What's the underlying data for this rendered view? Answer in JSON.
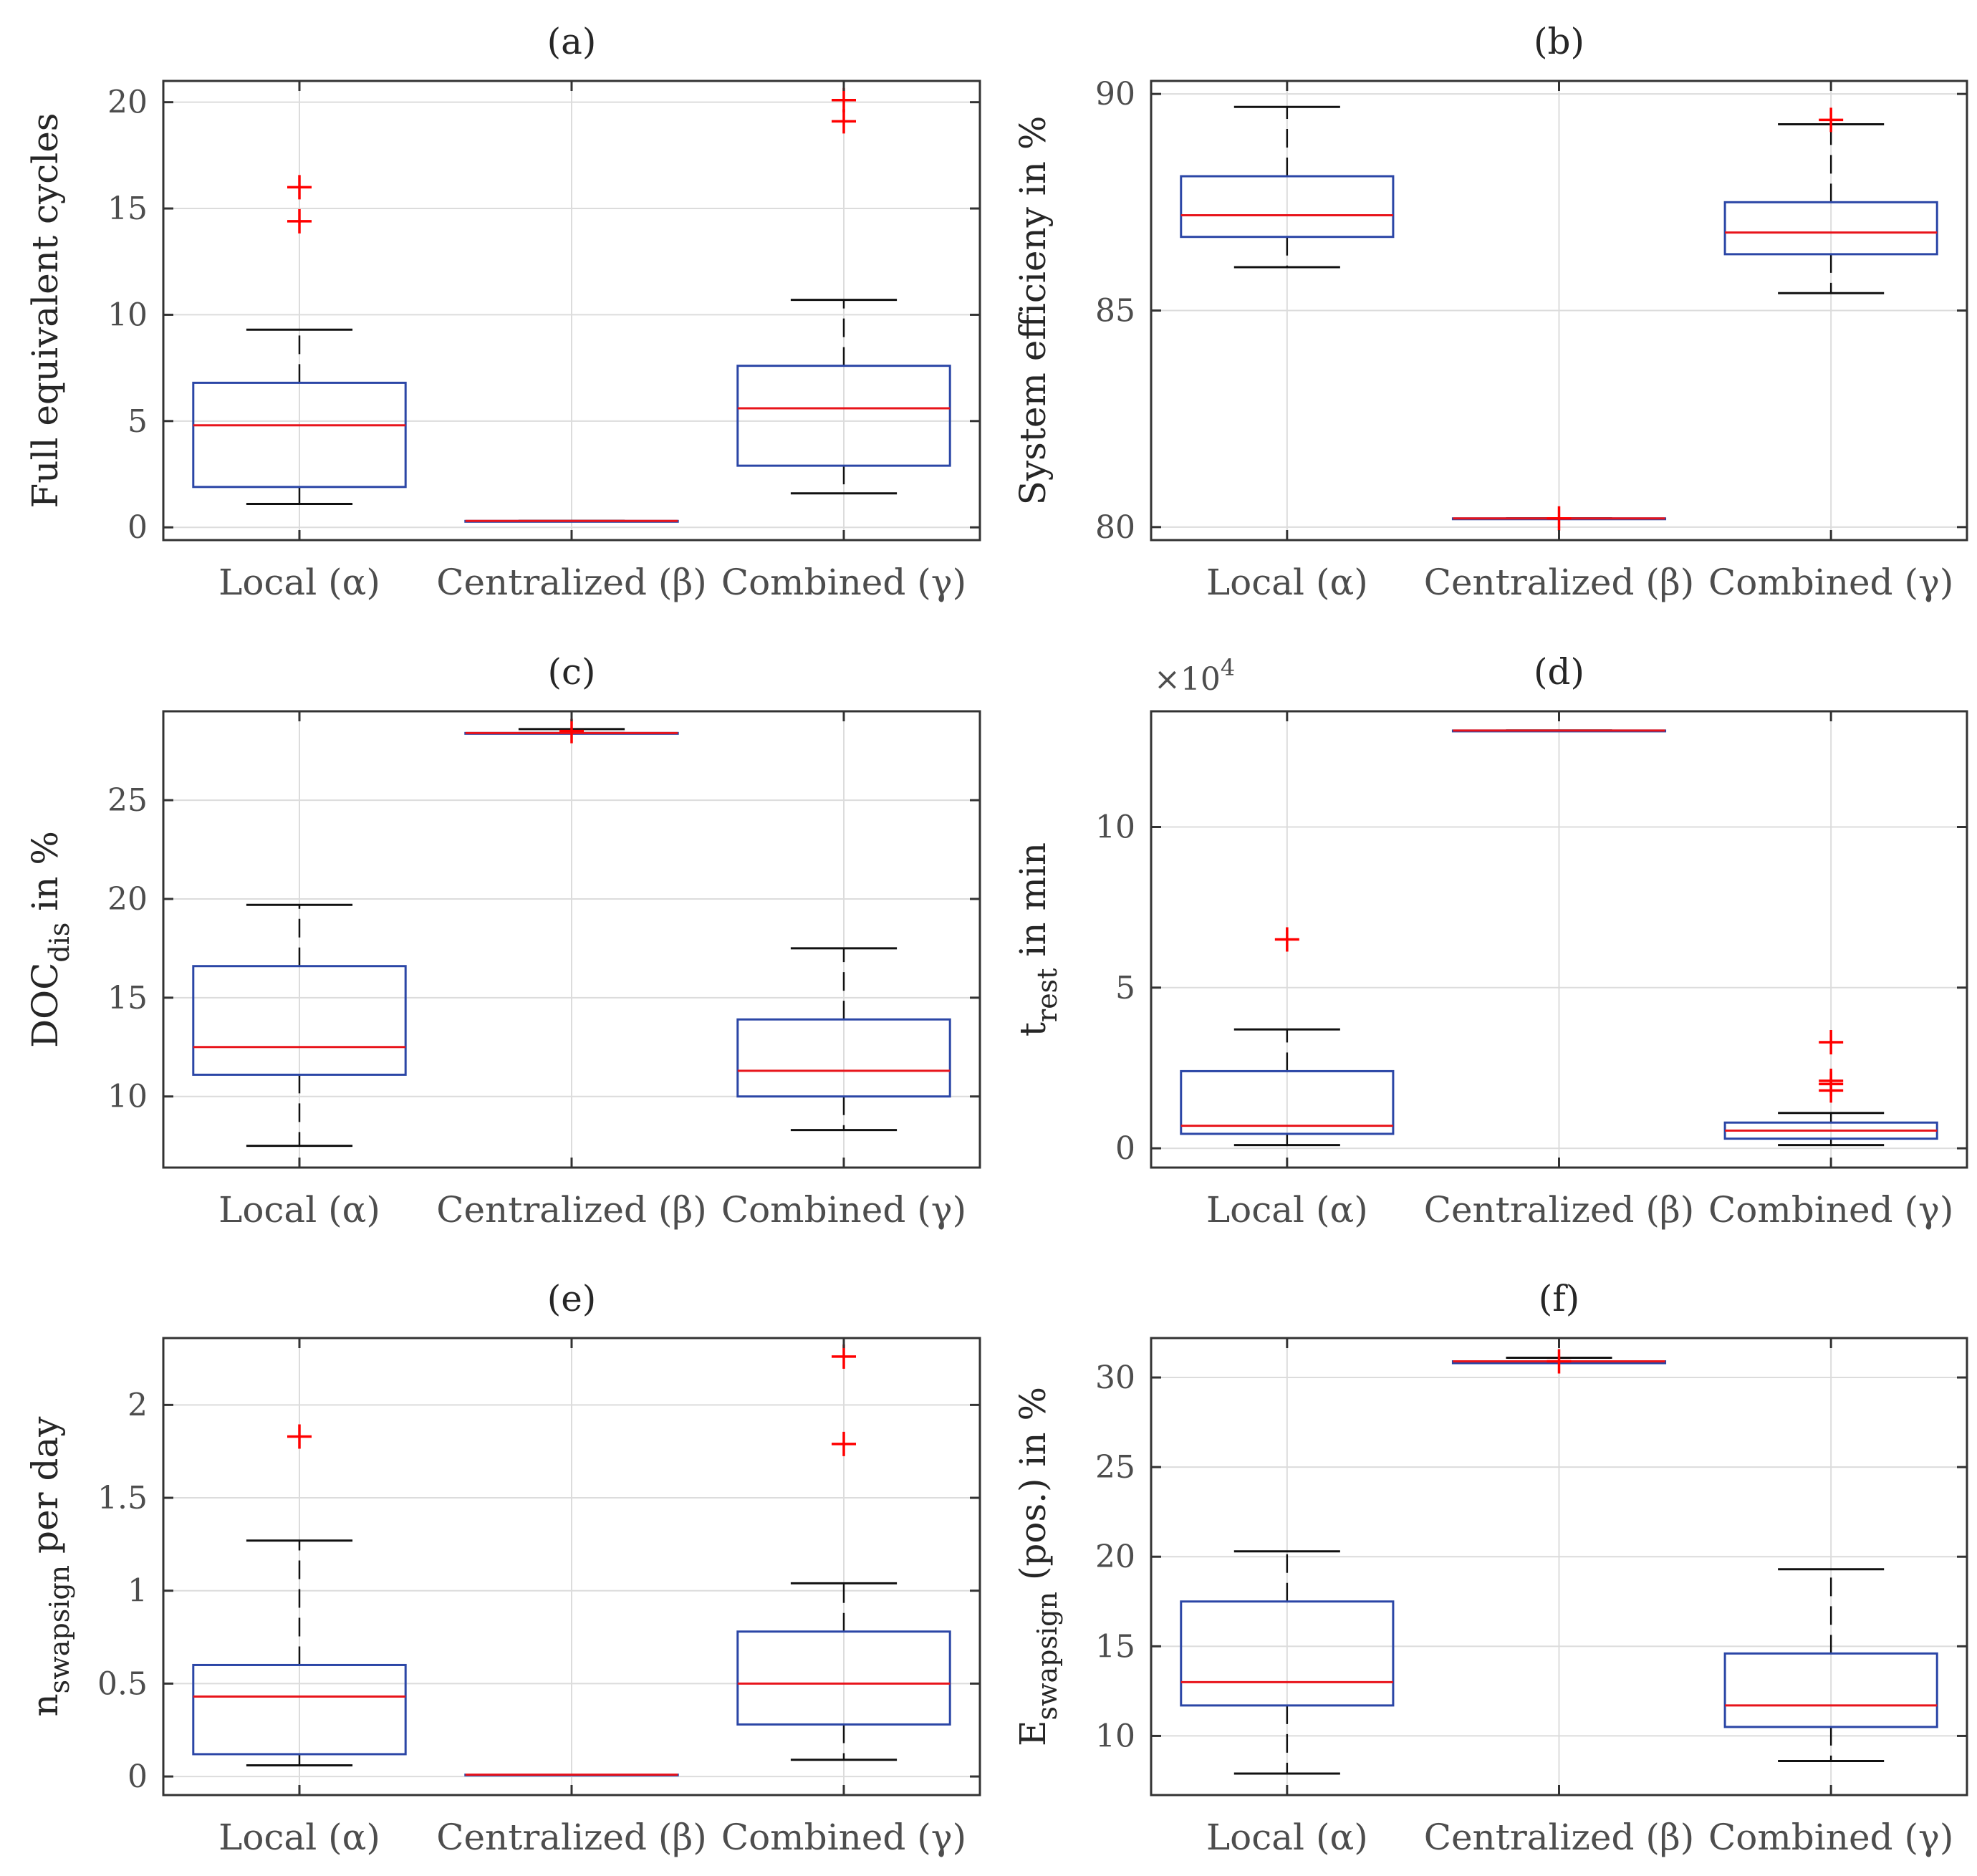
{
  "colors": {
    "box": "#2b46a6",
    "median": "#e8141b",
    "whisker": "#111111",
    "outlier": "#ff0000",
    "axes": "#333333",
    "grid": "#dcdcdc",
    "text": "#4d4d4d"
  },
  "chart_data": [
    {
      "type": "box",
      "title": "(a)",
      "ylabel": "Full equivalent cycles",
      "ylim": [
        -0.6,
        21
      ],
      "yticks": [
        0,
        5,
        10,
        15,
        20
      ],
      "ytick_labels": [
        "0",
        "5",
        "10",
        "15",
        "20"
      ],
      "grid": true,
      "categories": [
        "Local (α)",
        "Centralized (β)",
        "Combined (γ)"
      ],
      "boxes": [
        {
          "whisker_low": 1.1,
          "q1": 1.9,
          "median": 4.8,
          "q3": 6.8,
          "whisker_high": 9.3,
          "outliers": [
            14.4,
            16.0
          ]
        },
        {
          "whisker_low": 0.3,
          "q1": 0.3,
          "median": 0.3,
          "q3": 0.3,
          "whisker_high": 0.3,
          "outliers": []
        },
        {
          "whisker_low": 1.6,
          "q1": 2.9,
          "median": 5.6,
          "q3": 7.6,
          "whisker_high": 10.7,
          "outliers": [
            19.1,
            20.1
          ]
        }
      ]
    },
    {
      "type": "box",
      "title": "(b)",
      "ylabel": "System efficieny in %",
      "ylim": [
        79.7,
        90.3
      ],
      "yticks": [
        80,
        85,
        90
      ],
      "ytick_labels": [
        "80",
        "85",
        "90"
      ],
      "grid": true,
      "categories": [
        "Local (α)",
        "Centralized (β)",
        "Combined (γ)"
      ],
      "boxes": [
        {
          "whisker_low": 86.0,
          "q1": 86.7,
          "median": 87.2,
          "q3": 88.1,
          "whisker_high": 89.7,
          "outliers": []
        },
        {
          "whisker_low": 80.2,
          "q1": 80.2,
          "median": 80.2,
          "q3": 80.2,
          "whisker_high": 80.2,
          "outliers": [
            80.2
          ]
        },
        {
          "whisker_low": 85.4,
          "q1": 86.3,
          "median": 86.8,
          "q3": 87.5,
          "whisker_high": 89.3,
          "outliers": [
            89.4
          ]
        }
      ]
    },
    {
      "type": "box",
      "title": "(c)",
      "ylabel": "DOC",
      "ylabel_sub": "dis",
      "ylabel_suffix": "in %",
      "ylim": [
        6.4,
        29.5
      ],
      "yticks": [
        10,
        15,
        20,
        25
      ],
      "ytick_labels": [
        "10",
        "15",
        "20",
        "25"
      ],
      "grid": true,
      "categories": [
        "Local (α)",
        "Centralized (β)",
        "Combined (γ)"
      ],
      "boxes": [
        {
          "whisker_low": 7.5,
          "q1": 11.1,
          "median": 12.5,
          "q3": 16.6,
          "whisker_high": 19.7,
          "outliers": []
        },
        {
          "whisker_low": 28.4,
          "q1": 28.4,
          "median": 28.4,
          "q3": 28.4,
          "whisker_high": 28.6,
          "outliers": [
            28.5
          ]
        },
        {
          "whisker_low": 8.3,
          "q1": 10.0,
          "median": 11.3,
          "q3": 13.9,
          "whisker_high": 17.5,
          "outliers": []
        }
      ]
    },
    {
      "type": "box",
      "title": "(d)",
      "ylabel": "t",
      "ylabel_sub": "rest",
      "ylabel_suffix": "in min",
      "multiplier": "×10",
      "multiplier_exp": "4",
      "ylim": [
        -0.6,
        13.6
      ],
      "yticks": [
        0,
        5,
        10
      ],
      "ytick_labels": [
        "0",
        "5",
        "10"
      ],
      "grid": true,
      "categories": [
        "Local (α)",
        "Centralized (β)",
        "Combined (γ)"
      ],
      "boxes": [
        {
          "whisker_low": 0.1,
          "q1": 0.45,
          "median": 0.7,
          "q3": 2.4,
          "whisker_high": 3.7,
          "outliers": [
            6.5
          ]
        },
        {
          "whisker_low": 13.0,
          "q1": 13.0,
          "median": 13.0,
          "q3": 13.0,
          "whisker_high": 13.0,
          "outliers": []
        },
        {
          "whisker_low": 0.1,
          "q1": 0.3,
          "median": 0.55,
          "q3": 0.8,
          "whisker_high": 1.1,
          "outliers": [
            1.8,
            2.0,
            2.1,
            3.3
          ]
        }
      ]
    },
    {
      "type": "box",
      "title": "(e)",
      "ylabel": "n",
      "ylabel_sub": "swapsign",
      "ylabel_suffix": "per day",
      "ylim": [
        -0.1,
        2.36
      ],
      "yticks": [
        0,
        0.5,
        1,
        1.5,
        2
      ],
      "ytick_labels": [
        "0",
        "0.5",
        "1",
        "1.5",
        "2"
      ],
      "grid": true,
      "categories": [
        "Local (α)",
        "Centralized (β)",
        "Combined (γ)"
      ],
      "boxes": [
        {
          "whisker_low": 0.06,
          "q1": 0.12,
          "median": 0.43,
          "q3": 0.6,
          "whisker_high": 1.27,
          "outliers": [
            1.83
          ]
        },
        {
          "whisker_low": 0.01,
          "q1": 0.01,
          "median": 0.01,
          "q3": 0.01,
          "whisker_high": 0.01,
          "outliers": []
        },
        {
          "whisker_low": 0.09,
          "q1": 0.28,
          "median": 0.5,
          "q3": 0.78,
          "whisker_high": 1.04,
          "outliers": [
            1.79,
            2.26
          ]
        }
      ]
    },
    {
      "type": "box",
      "title": "(f)",
      "ylabel": "E",
      "ylabel_sub": "swapsign",
      "ylabel_suffix": "(pos.) in %",
      "ylim": [
        6.7,
        32.2
      ],
      "yticks": [
        10,
        15,
        20,
        25,
        30
      ],
      "ytick_labels": [
        "10",
        "15",
        "20",
        "25",
        "30"
      ],
      "grid": true,
      "categories": [
        "Local (α)",
        "Centralized (β)",
        "Combined (γ)"
      ],
      "boxes": [
        {
          "whisker_low": 7.9,
          "q1": 11.7,
          "median": 13.0,
          "q3": 17.5,
          "whisker_high": 20.3,
          "outliers": []
        },
        {
          "whisker_low": 30.8,
          "q1": 30.8,
          "median": 30.9,
          "q3": 30.9,
          "whisker_high": 31.1,
          "outliers": [
            30.9
          ]
        },
        {
          "whisker_low": 8.6,
          "q1": 10.5,
          "median": 11.7,
          "q3": 14.6,
          "whisker_high": 19.3,
          "outliers": []
        }
      ]
    }
  ]
}
